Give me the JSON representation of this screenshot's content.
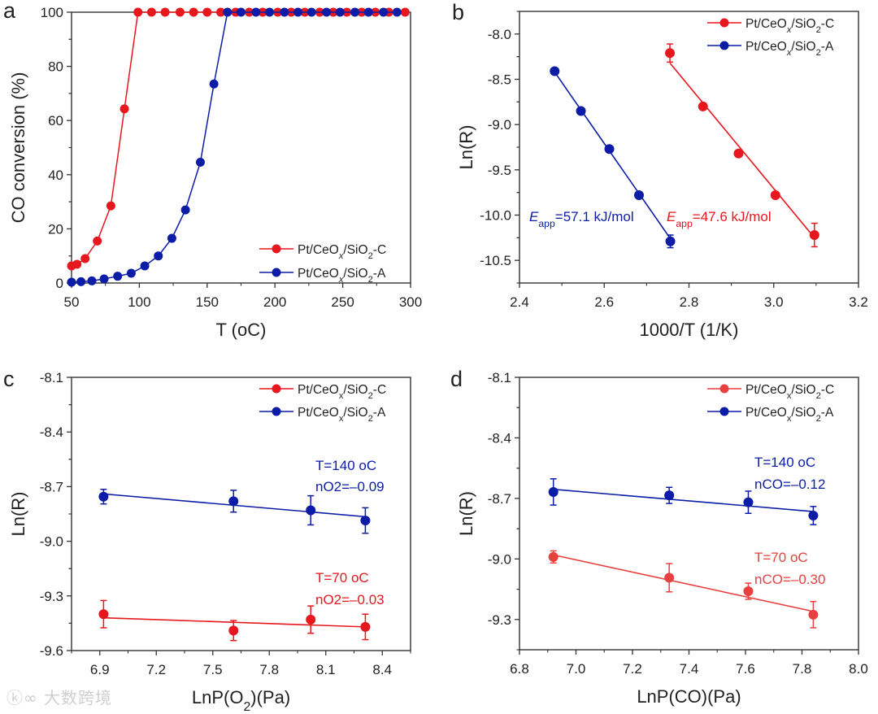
{
  "colors": {
    "red": "#e8161d",
    "red_light": "#e8403f",
    "blue": "#0b1ca6",
    "axis": "#333333"
  },
  "watermark": "大数跨境",
  "chart_data": [
    {
      "panel": "a",
      "type": "line",
      "xlabel": "T (oC)",
      "ylabel": "CO conversion (%)",
      "xlim": [
        50,
        300
      ],
      "ylim": [
        0,
        100
      ],
      "xticks": [
        50,
        100,
        150,
        200,
        250,
        300
      ],
      "xtick_labels": [
        "50",
        "100",
        "150",
        "200",
        "250",
        "300"
      ],
      "yticks": [
        0,
        20,
        40,
        60,
        80,
        100
      ],
      "ytick_labels": [
        "0",
        "20",
        "40",
        "60",
        "80",
        "100"
      ],
      "legend_position": "bottom-right",
      "series": [
        {
          "name": "Pt/CeOx/SiO2-C",
          "color": "#e8161d",
          "x": [
            50,
            54,
            60,
            69,
            79,
            89,
            99,
            109,
            119,
            130,
            140,
            150,
            160,
            171,
            181,
            191,
            202,
            212,
            222,
            233,
            243,
            253,
            264,
            274,
            284,
            296
          ],
          "y": [
            6.3,
            6.9,
            9,
            15.5,
            28.5,
            64.3,
            100,
            100,
            100,
            100,
            100,
            100,
            100,
            100,
            100,
            100,
            100,
            100,
            100,
            100,
            100,
            100,
            100,
            100,
            100,
            100
          ]
        },
        {
          "name": "Pt/CeOx/SiO2-A",
          "color": "#0b1ca6",
          "x": [
            50,
            57,
            65,
            74,
            84,
            94,
            104,
            114,
            124,
            134,
            145,
            155,
            165,
            175,
            186,
            196,
            207,
            217,
            227,
            238,
            248,
            259,
            269,
            280,
            290
          ],
          "y": [
            0.3,
            0.5,
            0.8,
            1.5,
            2.5,
            3.6,
            6.3,
            10,
            16.5,
            27,
            44.6,
            73.5,
            100,
            100,
            100,
            100,
            100,
            100,
            100,
            100,
            100,
            100,
            100,
            100,
            100
          ]
        }
      ],
      "annotations": []
    },
    {
      "panel": "b",
      "type": "scatter",
      "xlabel": "1000/T (1/K)",
      "ylabel": "Ln(R)",
      "xlim": [
        2.4,
        3.2
      ],
      "ylim": [
        -10.75,
        -7.75
      ],
      "xticks": [
        2.4,
        2.6,
        2.8,
        3.0,
        3.2
      ],
      "xtick_labels": [
        "2.4",
        "2.6",
        "2.8",
        "3.0",
        "3.2"
      ],
      "yticks": [
        -8.0,
        -8.5,
        -9.0,
        -9.5,
        -10.0,
        -10.5
      ],
      "ytick_labels": [
        "-8.0",
        "-8.5",
        "-9.0",
        "-9.5",
        "-10.0",
        "-10.5"
      ],
      "legend_position": "top-right",
      "series": [
        {
          "name": "Pt/CeOx/SiO2-C",
          "color": "#e8161d",
          "x": [
            2.755,
            2.833,
            2.917,
            3.004,
            3.096
          ],
          "y": [
            -8.21,
            -8.8,
            -9.32,
            -9.78,
            -10.22
          ],
          "err": [
            0.1,
            0.02,
            0.03,
            0.02,
            0.13
          ],
          "fit": [
            [
              2.755,
              -8.32
            ],
            [
              3.096,
              -10.25
            ]
          ]
        },
        {
          "name": "Pt/CeOx/SiO2-A",
          "color": "#0b1ca6",
          "x": [
            2.483,
            2.545,
            2.612,
            2.682,
            2.756
          ],
          "y": [
            -8.41,
            -8.85,
            -9.27,
            -9.78,
            -10.29
          ],
          "err": [
            0.02,
            0.02,
            0.02,
            0.02,
            0.07
          ],
          "fit": [
            [
              2.483,
              -8.42
            ],
            [
              2.756,
              -10.26
            ]
          ]
        }
      ],
      "annotations": [
        {
          "text": "Eapp=57.1 kJ/mol",
          "color": "#0b1ca6"
        },
        {
          "text": "Eapp=47.6 kJ/mol",
          "color": "#e8161d"
        }
      ]
    },
    {
      "panel": "c",
      "type": "scatter",
      "xlabel": "LnP(O2)(Pa)",
      "ylabel": "Ln(R)",
      "xlim": [
        6.75,
        8.55
      ],
      "ylim": [
        -9.6,
        -8.1
      ],
      "xticks": [
        6.9,
        7.2,
        7.5,
        7.8,
        8.1,
        8.4
      ],
      "xtick_labels": [
        "6.9",
        "7.2",
        "7.5",
        "7.8",
        "8.1",
        "8.4"
      ],
      "yticks": [
        -8.1,
        -8.4,
        -8.7,
        -9.0,
        -9.3,
        -9.6
      ],
      "ytick_labels": [
        "-8.1",
        "-8.4",
        "-8.7",
        "-9.0",
        "-9.3",
        "-9.6"
      ],
      "legend_position": "top-right",
      "series": [
        {
          "name": "Pt/CeOx/SiO2-C",
          "color": "#e8161d",
          "x": [
            6.92,
            7.61,
            8.02,
            8.31
          ],
          "y": [
            -9.4,
            -9.49,
            -9.43,
            -9.47
          ],
          "err": [
            0.075,
            0.055,
            0.075,
            0.07
          ],
          "fit": [
            [
              6.92,
              -9.42
            ],
            [
              8.31,
              -9.47
            ]
          ]
        },
        {
          "name": "Pt/CeOx/SiO2-A",
          "color": "#0b1ca6",
          "x": [
            6.92,
            7.61,
            8.02,
            8.31
          ],
          "y": [
            -8.755,
            -8.78,
            -8.83,
            -8.886
          ],
          "err": [
            0.04,
            0.06,
            0.08,
            0.07
          ],
          "fit": [
            [
              6.92,
              -8.74
            ],
            [
              8.31,
              -8.865
            ]
          ]
        }
      ],
      "annotations": [
        {
          "text": "T=140 oC",
          "color": "#0b1ca6"
        },
        {
          "text": "nO2=–0.09",
          "color": "#0b1ca6"
        },
        {
          "text": "T=70 oC",
          "color": "#e8161d"
        },
        {
          "text": "nO2=–0.03",
          "color": "#e8161d"
        }
      ]
    },
    {
      "panel": "d",
      "type": "scatter",
      "xlabel": "LnP(CO)(Pa)",
      "ylabel": "Ln(R)",
      "xlim": [
        6.8,
        8.0
      ],
      "ylim": [
        -9.45,
        -8.1
      ],
      "xticks": [
        6.8,
        7.0,
        7.2,
        7.4,
        7.6,
        7.8,
        8.0
      ],
      "xtick_labels": [
        "6.8",
        "7.0",
        "7.2",
        "7.4",
        "7.6",
        "7.8",
        "8.0"
      ],
      "yticks": [
        -8.1,
        -8.4,
        -8.7,
        -9.0,
        -9.3
      ],
      "ytick_labels": [
        "-8.1",
        "-8.4",
        "-8.7",
        "-9.0",
        "-9.3"
      ],
      "legend_position": "top-right",
      "series": [
        {
          "name": "Pt/CeOx/SiO2-C",
          "color": "#e8403f",
          "x": [
            6.92,
            7.33,
            7.61,
            7.84
          ],
          "y": [
            -8.99,
            -9.093,
            -9.16,
            -9.276
          ],
          "err": [
            0.03,
            0.07,
            0.04,
            0.065
          ],
          "fit": [
            [
              6.92,
              -8.98
            ],
            [
              7.84,
              -9.26
            ]
          ]
        },
        {
          "name": "Pt/CeOx/SiO2-A",
          "color": "#0b1ca6",
          "x": [
            6.92,
            7.33,
            7.61,
            7.84
          ],
          "y": [
            -8.668,
            -8.685,
            -8.719,
            -8.785
          ],
          "err": [
            0.065,
            0.04,
            0.055,
            0.045
          ],
          "fit": [
            [
              6.92,
              -8.655
            ],
            [
              7.84,
              -8.765
            ]
          ]
        }
      ],
      "annotations": [
        {
          "text": "T=140 oC",
          "color": "#0b1ca6"
        },
        {
          "text": "nCO=–0.12",
          "color": "#0b1ca6"
        },
        {
          "text": "T=70 oC",
          "color": "#e8403f"
        },
        {
          "text": "nCO=–0.30",
          "color": "#e8403f"
        }
      ]
    }
  ]
}
